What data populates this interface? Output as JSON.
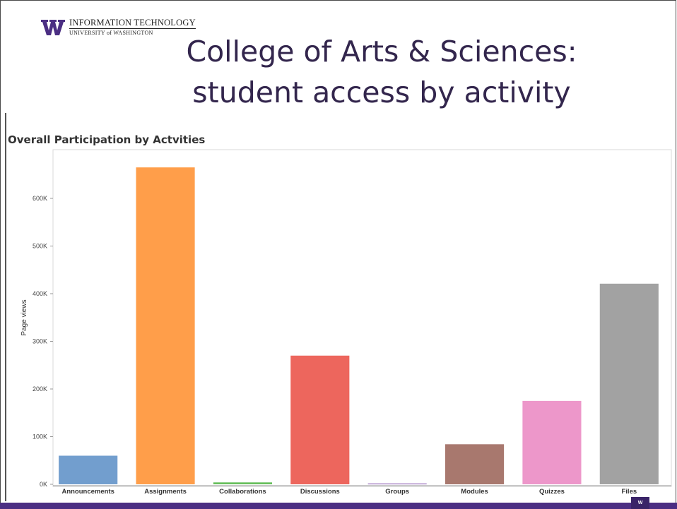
{
  "header": {
    "org_line1": "INFORMATION TECHNOLOGY",
    "org_line2": "UNIVERSITY of WASHINGTON",
    "title_line1": "College of Arts & Sciences:",
    "title_line2": "student access by activity",
    "brand_color": "#4b2e83",
    "logo_icon": "uw-w-logo-icon",
    "corner_mark": "W"
  },
  "chart_data": {
    "type": "bar",
    "title": "Overall Participation by Actvities",
    "xlabel": "",
    "ylabel": "Page views",
    "ylim": [
      0,
      700000
    ],
    "yticks": [
      0,
      100000,
      200000,
      300000,
      400000,
      500000,
      600000
    ],
    "ytick_labels": [
      "0K",
      "100K",
      "200K",
      "300K",
      "400K",
      "500K",
      "600K"
    ],
    "grid": false,
    "legend": "none",
    "categories": [
      "Announcements",
      "Assignments",
      "Collaborations",
      "Discussions",
      "Groups",
      "Modules",
      "Quizzes",
      "Files"
    ],
    "values": [
      60000,
      665000,
      4000,
      270000,
      2000,
      84000,
      175000,
      421000
    ],
    "colors": [
      "#729ece",
      "#ff9e4a",
      "#67bf5c",
      "#ed665d",
      "#ad8bc9",
      "#a8786e",
      "#ed97ca",
      "#a2a2a2"
    ]
  }
}
